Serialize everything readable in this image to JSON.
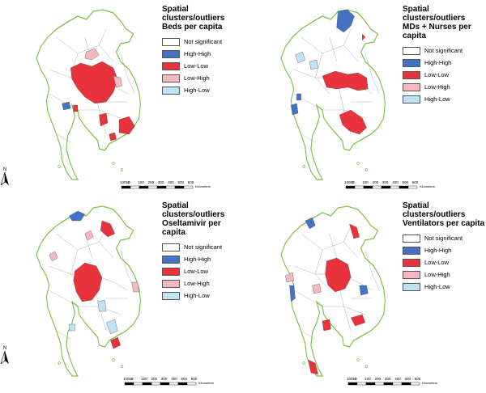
{
  "legend_entries": [
    "Not significant",
    "High-High",
    "Low-Low",
    "Low-High",
    "High-Low"
  ],
  "colors": {
    "not_significant": "#ffffff",
    "high_high": "#4472c4",
    "low_low": "#e8333c",
    "low_high": "#f4b8c0",
    "high_low": "#bfe3f5",
    "border": "#7dc246"
  },
  "panels": [
    {
      "title1": "Spatial clusters/outliers",
      "title2": "Beds per capita"
    },
    {
      "title1": "Spatial clusters/outliers",
      "title2": "MDs + Nurses per capita"
    },
    {
      "title1": "Spatial clusters/outliers",
      "title2": "Oseltamivir per capita"
    },
    {
      "title1": "Spatial clusters/outliers",
      "title2": "Ventilators per capita"
    }
  ],
  "scale": {
    "ticks": [
      "10050",
      "0",
      "100",
      "200",
      "300",
      "400",
      "500",
      "600"
    ],
    "unit": "Kilometers"
  },
  "north_label": "N"
}
